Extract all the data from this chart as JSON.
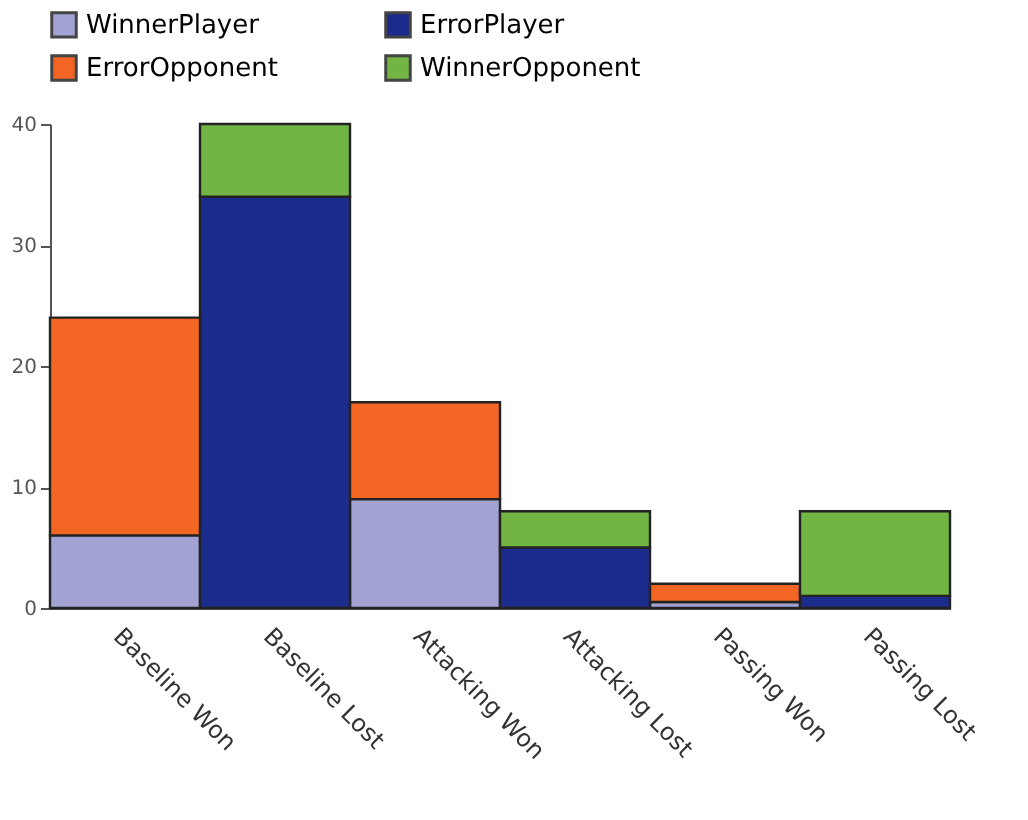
{
  "chart_data": {
    "type": "bar",
    "stacked": true,
    "categories": [
      "Baseline Won",
      "Baseline Lost",
      "Attacking Won",
      "Attacking Lost",
      "Passing Won",
      "Passing Lost"
    ],
    "series": [
      {
        "name": "WinnerPlayer",
        "color": "#a3a3d3",
        "values": [
          6,
          0,
          9,
          0,
          0.5,
          0
        ]
      },
      {
        "name": "ErrorPlayer",
        "color": "#1c2c8c",
        "values": [
          0,
          34,
          0,
          5,
          0,
          1
        ]
      },
      {
        "name": "ErrorOpponent",
        "color": "#f26522",
        "values": [
          18,
          0,
          8,
          0,
          1.5,
          0
        ]
      },
      {
        "name": "WinnerOpponent",
        "color": "#72b545",
        "values": [
          0,
          6,
          0,
          3,
          0,
          7
        ]
      }
    ],
    "ylim": [
      0,
      40
    ],
    "yticks": [
      0,
      10,
      20,
      30,
      40
    ],
    "grid": false,
    "legend": "top left"
  }
}
